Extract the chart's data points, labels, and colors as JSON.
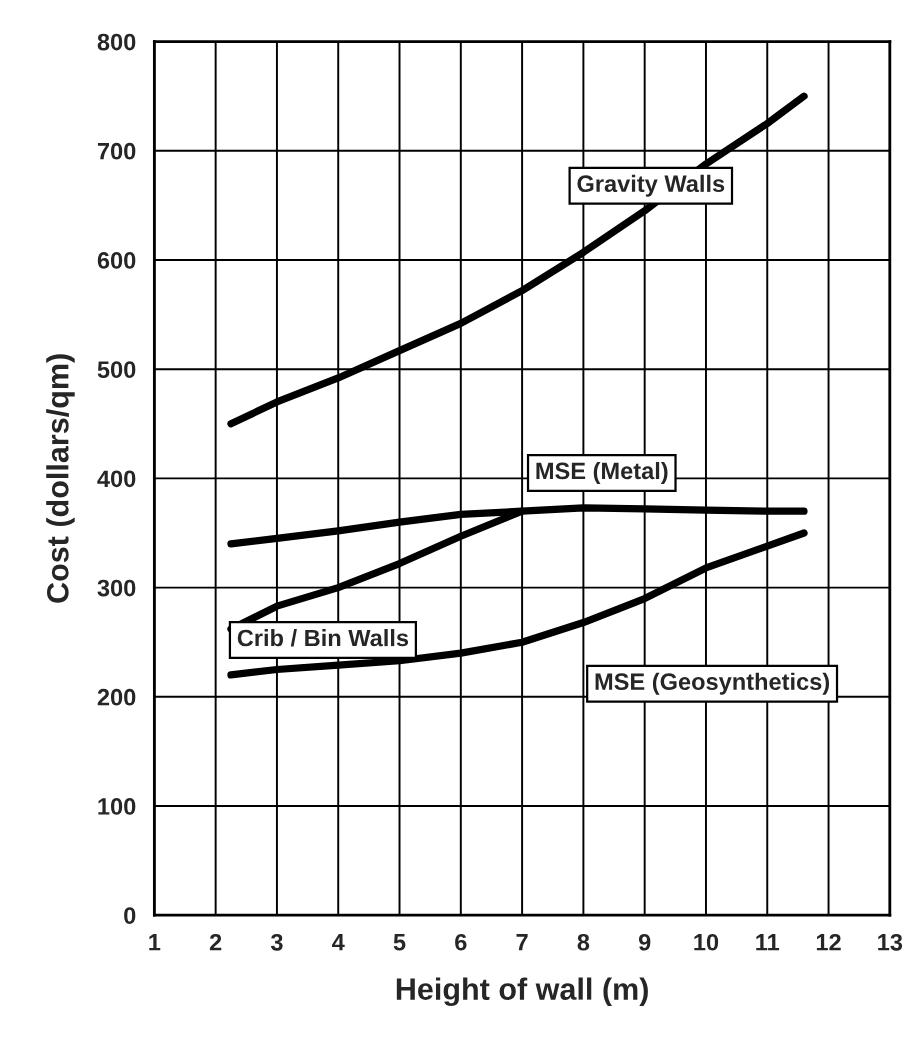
{
  "chart_data": {
    "type": "line",
    "xlabel": "Height of wall (m)",
    "ylabel": "Cost (dollars/qm)",
    "x": [
      2.25,
      3,
      4,
      5,
      6,
      7,
      8,
      9,
      10,
      11,
      11.6
    ],
    "series": [
      {
        "name": "Gravity Walls",
        "color": "#000000",
        "values": [
          450,
          470,
          492,
          517,
          542,
          572,
          607,
          645,
          688,
          725,
          750
        ]
      },
      {
        "name": "MSE (Metal)",
        "color": "#000000",
        "values": [
          340,
          345,
          352,
          360,
          367,
          370,
          373,
          372,
          371,
          370,
          370
        ]
      },
      {
        "name": "Crib / Bin Walls",
        "color": "#000000",
        "values": [
          262,
          283,
          300,
          322,
          347,
          370,
          null,
          null,
          null,
          null,
          null
        ]
      },
      {
        "name": "MSE (Geosynthetics)",
        "color": "#000000",
        "values": [
          220,
          225,
          229,
          233,
          240,
          250,
          268,
          290,
          318,
          338,
          350
        ]
      }
    ],
    "xlim": [
      1,
      13
    ],
    "xticks": [
      1,
      2,
      3,
      4,
      5,
      6,
      7,
      8,
      9,
      10,
      11,
      12,
      13
    ],
    "ylim": [
      0,
      800
    ],
    "yticks": [
      0,
      100,
      200,
      300,
      400,
      500,
      600,
      700,
      800
    ],
    "grid": true,
    "legend": false,
    "marker": "none",
    "line_style": "solid"
  }
}
